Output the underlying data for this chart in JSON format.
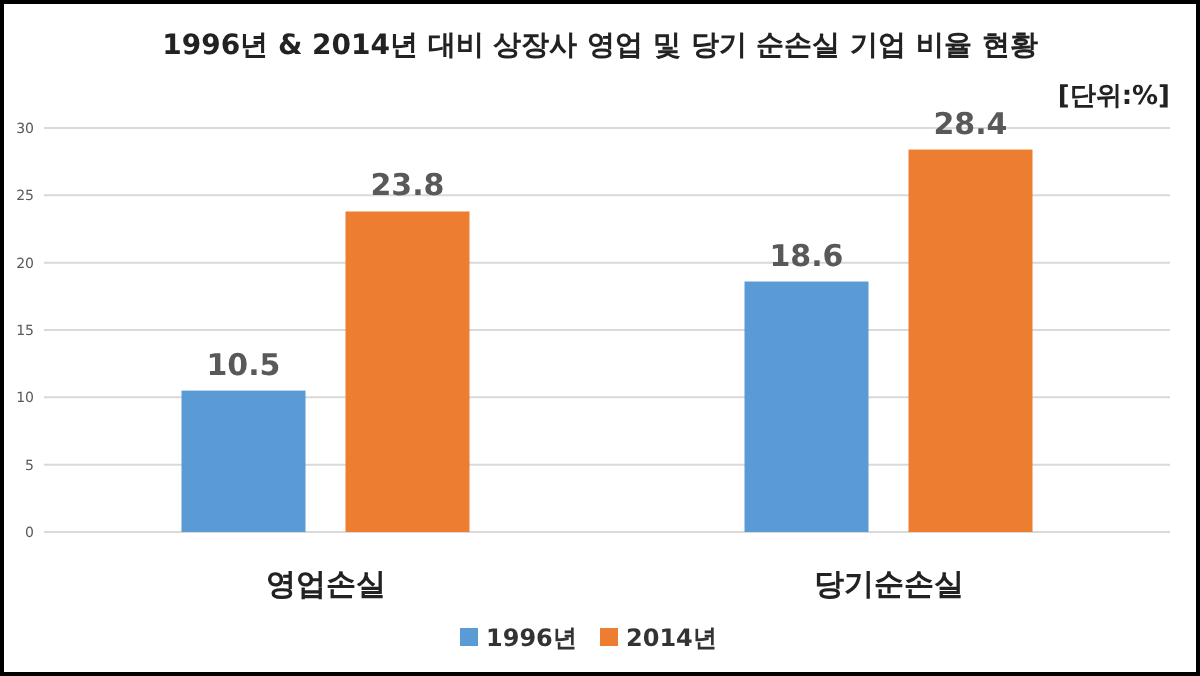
{
  "chart_data": {
    "type": "bar",
    "title": "1996년 & 2014년 대비 상장사 영업 및 당기 순손실 기업 비율 현황",
    "subtitle": "[단위:%]",
    "categories": [
      "영업손실",
      "당기순손실"
    ],
    "series": [
      {
        "name": "1996년",
        "color": "#5b9bd5",
        "values": [
          10.5,
          18.6
        ]
      },
      {
        "name": "2014년",
        "color": "#ed7d31",
        "values": [
          23.8,
          28.4
        ]
      }
    ],
    "ylim": [
      0,
      30
    ],
    "yticks": [
      0,
      5,
      10,
      15,
      20,
      25,
      30
    ],
    "grid": "y",
    "legend": "bottom",
    "data_labels": true
  }
}
